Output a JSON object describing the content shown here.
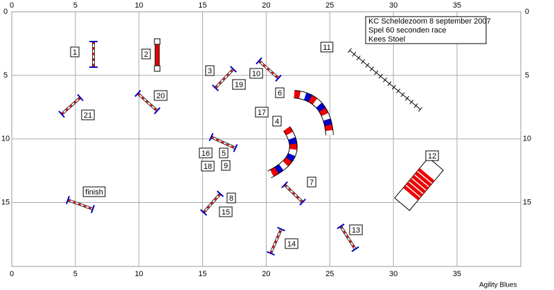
{
  "x_ticks": [
    "0",
    "5",
    "10",
    "15",
    "20",
    "25",
    "30",
    "35"
  ],
  "y_ticks": [
    "0",
    "5",
    "10",
    "15"
  ],
  "info": [
    "KC Scheldezoom 8 september 2007",
    "Spel 60 seconden race",
    "Kees Stoel"
  ],
  "labels": [
    "1",
    "2",
    "3",
    "10",
    "19",
    "6",
    "20",
    "21",
    "17",
    "4",
    "11",
    "16",
    "5",
    "18",
    "9",
    "7",
    "12",
    "finish",
    "8",
    "15",
    "13",
    "14"
  ],
  "footer": "Agility Blues"
}
